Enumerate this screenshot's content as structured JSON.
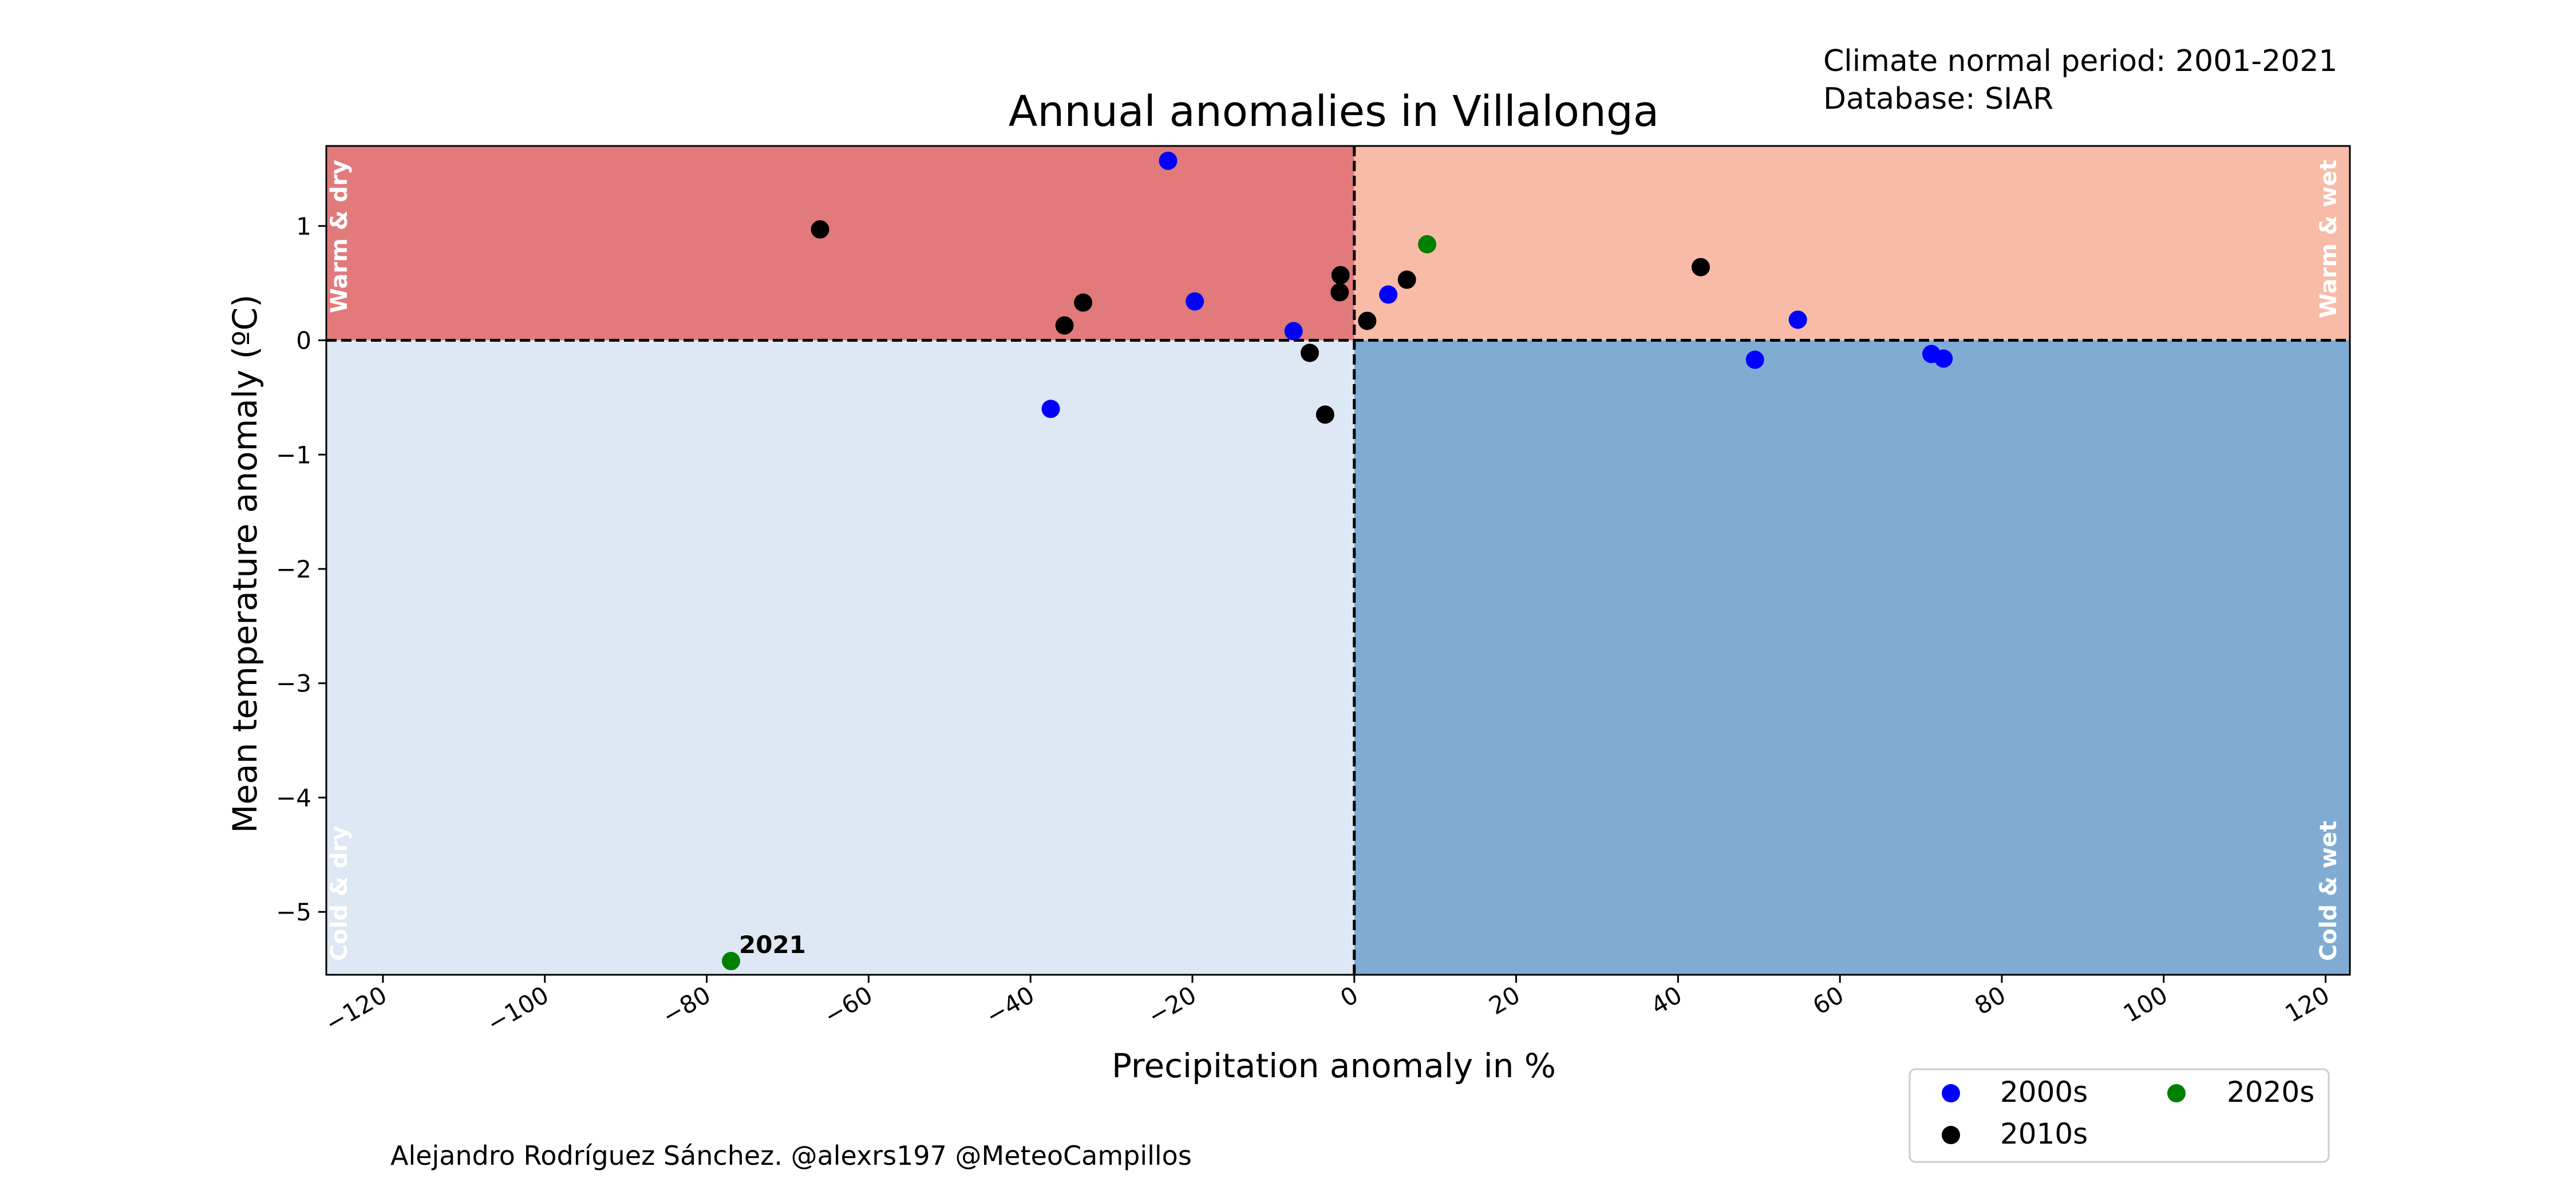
{
  "chart_data": {
    "type": "scatter",
    "title": "Annual anomalies in Villalonga",
    "info_lines": [
      "Climate normal period: 2001-2021",
      "Database: SIAR"
    ],
    "xlabel": "Precipitation anomaly in %",
    "ylabel": "Mean temperature anomaly (ºC)",
    "xlim": [
      -127,
      123
    ],
    "ylim": [
      -5.55,
      1.7
    ],
    "xticks": [
      -120,
      -100,
      -80,
      -60,
      -40,
      -20,
      0,
      20,
      40,
      60,
      80,
      100,
      120
    ],
    "xtick_labels": [
      "−120",
      "−100",
      "−80",
      "−60",
      "−40",
      "−20",
      "0",
      "20",
      "40",
      "60",
      "80",
      "100",
      "120"
    ],
    "yticks": [
      1,
      0,
      -1,
      -2,
      -3,
      -4,
      -5
    ],
    "ytick_labels": [
      "1",
      "0",
      "−1",
      "−2",
      "−3",
      "−4",
      "−5"
    ],
    "grid": false,
    "quadrants": [
      {
        "name": "warm-dry",
        "label": "Warm & dry",
        "color": "#e27a7c"
      },
      {
        "name": "warm-wet",
        "label": "Warm & wet",
        "color": "#f7bba8"
      },
      {
        "name": "cold-dry",
        "label": "Cold & dry",
        "color": "#dde8f4"
      },
      {
        "name": "cold-wet",
        "label": "Cold & wet",
        "color": "#80acd4"
      }
    ],
    "series": [
      {
        "name": "2000s",
        "color": "#0000ff",
        "points": [
          {
            "x": -23,
            "y": 1.57
          },
          {
            "x": -19.7,
            "y": 0.34
          },
          {
            "x": -7.5,
            "y": 0.08
          },
          {
            "x": 4.2,
            "y": 0.4
          },
          {
            "x": -37.5,
            "y": -0.6
          },
          {
            "x": 49.5,
            "y": -0.17
          },
          {
            "x": 54.8,
            "y": 0.18
          },
          {
            "x": 71.3,
            "y": -0.12
          },
          {
            "x": 72.8,
            "y": -0.16
          }
        ]
      },
      {
        "name": "2010s",
        "color": "#000000",
        "points": [
          {
            "x": -66,
            "y": 0.97
          },
          {
            "x": -35.8,
            "y": 0.13
          },
          {
            "x": -33.5,
            "y": 0.33
          },
          {
            "x": -1.7,
            "y": 0.57
          },
          {
            "x": -1.8,
            "y": 0.42
          },
          {
            "x": 1.6,
            "y": 0.17
          },
          {
            "x": 6.5,
            "y": 0.53
          },
          {
            "x": 42.8,
            "y": 0.64
          },
          {
            "x": -5.5,
            "y": -0.11
          },
          {
            "x": -3.6,
            "y": -0.65
          }
        ]
      },
      {
        "name": "2020s",
        "color": "#008000",
        "points": [
          {
            "x": 9,
            "y": 0.84
          },
          {
            "x": -77,
            "y": -5.43,
            "label": "2021"
          }
        ]
      }
    ],
    "legend": {
      "placement": "bottom-right, below axes",
      "columns": 2
    },
    "footer": "Alejandro Rodríguez Sánchez. @alexrs197 @MeteoCampillos"
  }
}
